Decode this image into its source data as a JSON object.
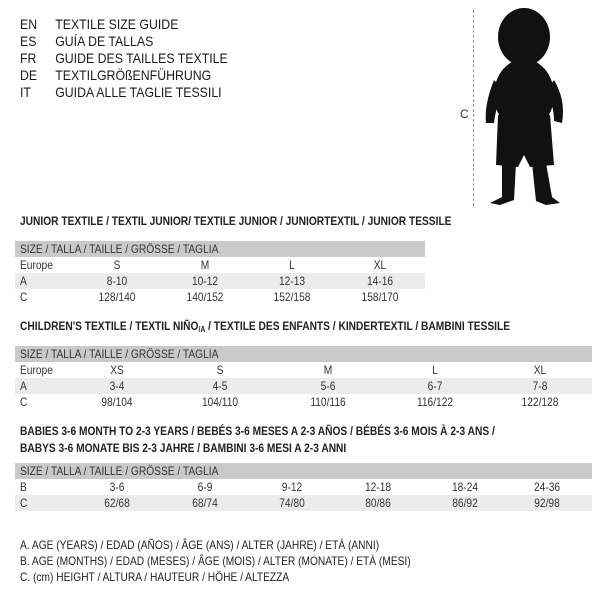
{
  "header": {
    "languages": [
      {
        "code": "EN",
        "text": "TEXTILE SIZE GUIDE"
      },
      {
        "code": "ES",
        "text": "GUÍA DE TALLAS"
      },
      {
        "code": "FR",
        "text": "GUIDE DES TAILLES TEXTILE"
      },
      {
        "code": "DE",
        "text": "TEXTILGRÖßENFÜHRUNG"
      },
      {
        "code": "IT",
        "text": "GUIDA ALLE TAGLIE TESSILI"
      }
    ]
  },
  "figure": {
    "measure_label": "C",
    "icon": "child-silhouette-icon"
  },
  "size_header": "SIZE / TALLA / TAILLE / GRÖSSE / TAGLIA",
  "tables": [
    {
      "title": "JUNIOR TEXTILE / TEXTIL JUNIOR/ TEXTILE JUNIOR / JUNIORTEXTIL / JUNIOR TESSILE",
      "rows": [
        {
          "label": "Europe",
          "values": [
            "S",
            "M",
            "L",
            "XL"
          ]
        },
        {
          "label": "A",
          "values": [
            "8-10",
            "10-12",
            "12-13",
            "14-16"
          ]
        },
        {
          "label": "C",
          "values": [
            "128/140",
            "140/152",
            "152/158",
            "158/170"
          ]
        }
      ]
    },
    {
      "title": "CHILDREN'S TEXTILE / TEXTIL NIÑO",
      "title_sub": "/A",
      "title_rest": " / TEXTILE DES ENFANTS / KINDERTEXTIL / BAMBINI TESSILE",
      "rows": [
        {
          "label": "Europe",
          "values": [
            "XS",
            "S",
            "M",
            "L",
            "XL"
          ]
        },
        {
          "label": "A",
          "values": [
            "3-4",
            "4-5",
            "5-6",
            "6-7",
            "7-8"
          ]
        },
        {
          "label": "C",
          "values": [
            "98/104",
            "104/110",
            "110/116",
            "116/122",
            "122/128"
          ]
        }
      ]
    },
    {
      "title": "BABIES 3-6 MONTH TO 2-3 YEARS / BEBÉS 3-6 MESES A 2-3 AÑOS / BÉBÉS 3-6 MOIS À 2-3 ANS /",
      "title_line2": "BABYS 3-6 MONATE BIS 2-3 JAHRE / BAMBINI 3-6 MESI A 2-3 ANNI",
      "rows": [
        {
          "label": "B",
          "values": [
            "3-6",
            "6-9",
            "9-12",
            "12-18",
            "18-24",
            "24-36"
          ]
        },
        {
          "label": "C",
          "values": [
            "62/68",
            "68/74",
            "74/80",
            "80/86",
            "86/92",
            "92/98"
          ]
        }
      ]
    }
  ],
  "legend": [
    "A. AGE (YEARS) / EDAD (AÑOS) / ÂGE (ANS) / ALTER (JAHRE) / ETÀ (ANNI)",
    "B. AGE (MONTHS) / EDAD (MESES) / ÂGE (MOIS) / ALTER (MONATE) / ETÀ (MESI)",
    "C. (cm) HEIGHT / ALTURA / HAUTEUR / HÖHE / ALTEZZA"
  ]
}
